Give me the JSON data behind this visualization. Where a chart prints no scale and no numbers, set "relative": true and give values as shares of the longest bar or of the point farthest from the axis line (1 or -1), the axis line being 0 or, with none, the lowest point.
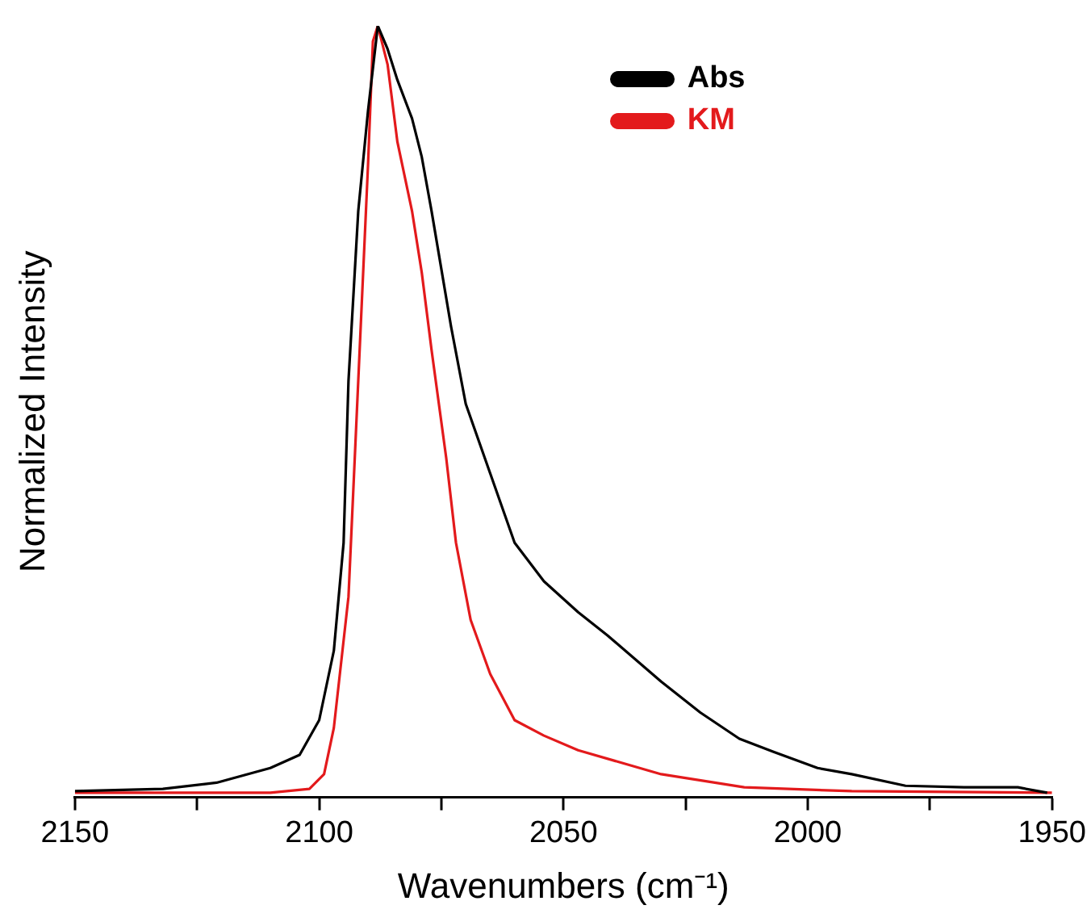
{
  "chart_data": {
    "type": "line",
    "xlabel": "Wavenumbers (cm⁻¹)",
    "ylabel": "Normalized Intensity",
    "relative": true,
    "legend": "top right",
    "marker": "none",
    "line_style": "solid",
    "xlim": [
      2150,
      1950
    ],
    "xticks": [
      2150,
      {
        "value": 2125,
        "label": null
      },
      2100,
      {
        "value": 2075,
        "label": null
      },
      2050,
      {
        "value": 2025,
        "label": null
      },
      2000,
      {
        "value": 1975,
        "label": null
      },
      1950
    ],
    "series": [
      {
        "name": "Abs",
        "color": "#000000",
        "x": [
          2150,
          2132,
          2121,
          2110,
          2104,
          2100,
          2097,
          2095,
          2094,
          2092,
          2090,
          2088,
          2086,
          2084,
          2081,
          2079,
          2077,
          2073,
          2070,
          2065,
          2060,
          2054,
          2047,
          2041,
          2030,
          2022,
          2014,
          2007,
          1998,
          1991,
          1980,
          1968,
          1957,
          1951
        ],
        "values": [
          0.008,
          0.011,
          0.019,
          0.038,
          0.055,
          0.1,
          0.19,
          0.33,
          0.54,
          0.76,
          0.89,
          1,
          0.97,
          0.93,
          0.88,
          0.83,
          0.76,
          0.61,
          0.51,
          0.42,
          0.33,
          0.28,
          0.24,
          0.21,
          0.15,
          0.11,
          0.076,
          0.059,
          0.038,
          0.03,
          0.015,
          0.013,
          0.013,
          0.006
        ]
      },
      {
        "name": "KM",
        "color": "#e31a1c",
        "x": [
          2150,
          2110,
          2102,
          2099,
          2097,
          2094,
          2092,
          2090,
          2089,
          2088,
          2086,
          2084,
          2081,
          2079,
          2077,
          2074,
          2072,
          2069,
          2065,
          2060,
          2054,
          2047,
          2030,
          2013,
          1991,
          1950
        ],
        "values": [
          0.006,
          0.006,
          0.011,
          0.03,
          0.09,
          0.26,
          0.54,
          0.82,
          0.98,
          1,
          0.95,
          0.85,
          0.76,
          0.68,
          0.58,
          0.44,
          0.33,
          0.23,
          0.16,
          0.1,
          0.08,
          0.061,
          0.03,
          0.013,
          0.008,
          0.006
        ]
      }
    ]
  }
}
